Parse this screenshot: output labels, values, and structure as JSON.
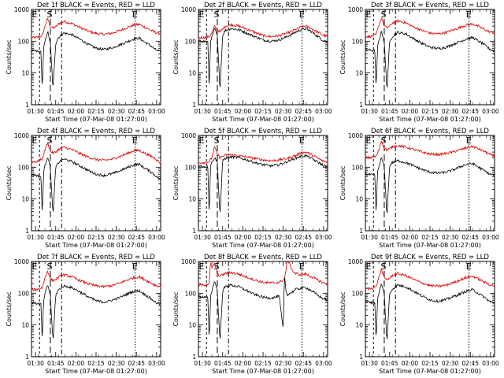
{
  "chart_data": [
    {
      "type": "line",
      "title": "Det 1f BLACK = Events, RED = LLD",
      "xlabel": "Start Time (07-Mar-08 01:27:00)",
      "ylabel": "Counts/sec",
      "yscale": "log",
      "ylim": [
        1,
        1000
      ],
      "yticks": [
        "1",
        "10",
        "100",
        "1000"
      ],
      "xticks": [
        "01:30",
        "01:45",
        "02:00",
        "02:15",
        "02:30",
        "02:45",
        "03:00"
      ],
      "xlim": [
        0,
        96
      ],
      "markers": [
        "E",
        "S",
        "E"
      ],
      "red": {
        "x": [
          0,
          4,
          8,
          10,
          12,
          14,
          16,
          18,
          20,
          24,
          30,
          36,
          42,
          48,
          54,
          60,
          66,
          72,
          76,
          80,
          84,
          88,
          92,
          96
        ],
        "y": [
          130,
          130,
          150,
          300,
          520,
          290,
          260,
          280,
          350,
          420,
          360,
          270,
          210,
          175,
          165,
          180,
          220,
          280,
          320,
          340,
          280,
          230,
          190,
          170
        ]
      },
      "black": {
        "x": [
          0,
          4,
          7,
          8,
          9,
          10,
          12,
          14,
          16,
          18,
          20,
          24,
          30,
          36,
          42,
          48,
          54,
          60,
          66,
          72,
          76,
          80,
          84,
          88,
          92,
          96
        ],
        "y": [
          50,
          48,
          45,
          3,
          60,
          95,
          200,
          90,
          3,
          90,
          130,
          180,
          160,
          115,
          80,
          60,
          55,
          62,
          78,
          100,
          118,
          125,
          95,
          75,
          55,
          45
        ]
      }
    },
    {
      "type": "line",
      "title": "Det 2f BLACK = Events, RED = LLD",
      "xlabel": "Start Time (07-Mar-08 01:27:00)",
      "ylabel": "Counts/sec",
      "yscale": "log",
      "ylim": [
        1,
        1000
      ],
      "yticks": [
        "1",
        "10",
        "100",
        "1000"
      ],
      "xticks": [
        "01:30",
        "01:45",
        "02:00",
        "02:15",
        "02:30",
        "02:45",
        "03:00"
      ],
      "xlim": [
        0,
        96
      ],
      "markers": [
        "E",
        "S",
        "E"
      ],
      "red": {
        "x": [
          0,
          4,
          8,
          10,
          12,
          14,
          16,
          18,
          20,
          24,
          30,
          36,
          42,
          48,
          54,
          60,
          66,
          72,
          76,
          80,
          84,
          88,
          92,
          96
        ],
        "y": [
          130,
          130,
          140,
          180,
          300,
          230,
          200,
          240,
          300,
          330,
          300,
          240,
          190,
          150,
          140,
          150,
          180,
          230,
          280,
          300,
          250,
          200,
          160,
          140
        ]
      },
      "black": {
        "x": [
          0,
          4,
          7,
          8,
          9,
          10,
          12,
          14,
          16,
          18,
          20,
          24,
          30,
          36,
          42,
          48,
          54,
          60,
          66,
          72,
          76,
          80,
          84,
          88,
          92,
          96
        ],
        "y": [
          100,
          100,
          95,
          3,
          110,
          130,
          250,
          150,
          3,
          160,
          220,
          250,
          230,
          180,
          140,
          110,
          100,
          110,
          140,
          190,
          230,
          250,
          200,
          150,
          110,
          95
        ]
      }
    },
    {
      "type": "line",
      "title": "Det 3f BLACK = Events, RED = LLD",
      "xlabel": "Start Time (07-Mar-08 01:27:00)",
      "ylabel": "Counts/sec",
      "yscale": "log",
      "ylim": [
        1,
        1000
      ],
      "yticks": [
        "1",
        "10",
        "100",
        "1000"
      ],
      "xticks": [
        "01:30",
        "01:45",
        "02:00",
        "02:15",
        "02:30",
        "02:45",
        "03:00"
      ],
      "xlim": [
        0,
        96
      ],
      "markers": [
        "E",
        "S",
        "E"
      ],
      "red": {
        "x": [
          0,
          4,
          8,
          10,
          12,
          14,
          16,
          18,
          20,
          24,
          30,
          36,
          42,
          48,
          54,
          60,
          66,
          72,
          76,
          80,
          84,
          88,
          92,
          96
        ],
        "y": [
          140,
          140,
          160,
          320,
          560,
          300,
          270,
          300,
          370,
          440,
          380,
          280,
          220,
          180,
          170,
          190,
          230,
          290,
          330,
          350,
          290,
          240,
          200,
          180
        ]
      },
      "black": {
        "x": [
          0,
          4,
          7,
          8,
          9,
          10,
          12,
          14,
          16,
          18,
          20,
          24,
          30,
          36,
          42,
          48,
          54,
          60,
          66,
          72,
          76,
          80,
          84,
          88,
          92,
          96
        ],
        "y": [
          55,
          52,
          50,
          3,
          65,
          100,
          210,
          95,
          3,
          95,
          140,
          190,
          170,
          120,
          85,
          65,
          58,
          65,
          82,
          105,
          122,
          130,
          100,
          80,
          58,
          48
        ]
      }
    },
    {
      "type": "line",
      "title": "Det 4f BLACK = Events, RED = LLD",
      "xlabel": "Start Time (07-Mar-08 01:27:00)",
      "ylabel": "Counts/sec",
      "yscale": "log",
      "ylim": [
        1,
        1000
      ],
      "yticks": [
        "1",
        "10",
        "100",
        "1000"
      ],
      "xticks": [
        "01:30",
        "01:45",
        "02:00",
        "02:15",
        "02:30",
        "02:45",
        "03:00"
      ],
      "xlim": [
        0,
        96
      ],
      "markers": [
        "E",
        "S",
        "E"
      ],
      "red": {
        "x": [
          0,
          4,
          8,
          10,
          12,
          14,
          16,
          18,
          20,
          24,
          30,
          36,
          42,
          48,
          54,
          60,
          66,
          72,
          76,
          80,
          84,
          88,
          92,
          96
        ],
        "y": [
          150,
          150,
          180,
          350,
          600,
          320,
          280,
          300,
          360,
          420,
          360,
          270,
          210,
          175,
          165,
          180,
          220,
          280,
          330,
          340,
          280,
          230,
          190,
          130
        ]
      },
      "black": {
        "x": [
          0,
          4,
          7,
          8,
          9,
          10,
          12,
          14,
          16,
          18,
          20,
          24,
          30,
          36,
          42,
          48,
          54,
          60,
          66,
          72,
          76,
          80,
          84,
          88,
          92,
          96
        ],
        "y": [
          60,
          55,
          50,
          3,
          70,
          110,
          220,
          100,
          3,
          100,
          140,
          180,
          150,
          110,
          80,
          60,
          55,
          62,
          78,
          100,
          118,
          125,
          95,
          75,
          55,
          40
        ]
      }
    },
    {
      "type": "line",
      "title": "Det 5f BLACK = Events, RED = LLD",
      "xlabel": "Start Time (07-Mar-08 01:27:00)",
      "ylabel": "Counts/sec",
      "yscale": "log",
      "ylim": [
        1,
        1000
      ],
      "yticks": [
        "1",
        "10",
        "100",
        "1000"
      ],
      "xticks": [
        "01:30",
        "01:45",
        "02:00",
        "02:15",
        "02:30",
        "02:45",
        "03:00"
      ],
      "xlim": [
        0,
        96
      ],
      "markers": [
        "E",
        "S",
        "E"
      ],
      "red": {
        "x": [
          0,
          4,
          8,
          10,
          12,
          14,
          16,
          18,
          20,
          24,
          30,
          36,
          42,
          48,
          54,
          60,
          66,
          72,
          76,
          80,
          84,
          88,
          92,
          96
        ],
        "y": [
          140,
          140,
          150,
          200,
          450,
          250,
          200,
          220,
          240,
          250,
          230,
          210,
          190,
          170,
          160,
          170,
          190,
          230,
          280,
          300,
          250,
          200,
          160,
          140
        ]
      },
      "black": {
        "x": [
          0,
          4,
          7,
          8,
          9,
          10,
          12,
          14,
          16,
          18,
          20,
          24,
          30,
          36,
          42,
          48,
          54,
          60,
          66,
          72,
          76,
          80,
          84,
          88,
          92,
          96
        ],
        "y": [
          110,
          105,
          100,
          3,
          120,
          140,
          200,
          150,
          3,
          160,
          190,
          210,
          200,
          170,
          140,
          120,
          110,
          120,
          150,
          190,
          220,
          230,
          190,
          150,
          120,
          100
        ]
      }
    },
    {
      "type": "line",
      "title": "Det 6f BLACK = Events, RED = LLD",
      "xlabel": "Start Time (07-Mar-08 01:27:00)",
      "ylabel": "Counts/sec",
      "yscale": "log",
      "ylim": [
        1,
        1000
      ],
      "yticks": [
        "1",
        "10",
        "100",
        "1000"
      ],
      "xticks": [
        "01:30",
        "01:45",
        "02:00",
        "02:15",
        "02:30",
        "02:45",
        "03:00"
      ],
      "xlim": [
        0,
        96
      ],
      "markers": [
        "E",
        "S",
        "E"
      ],
      "red": {
        "x": [
          0,
          4,
          8,
          10,
          12,
          14,
          16,
          18,
          20,
          24,
          30,
          36,
          42,
          48,
          54,
          60,
          66,
          72,
          76,
          80,
          84,
          88,
          92,
          96
        ],
        "y": [
          200,
          200,
          220,
          350,
          700,
          400,
          350,
          380,
          440,
          480,
          430,
          360,
          300,
          260,
          250,
          270,
          310,
          370,
          420,
          450,
          380,
          320,
          260,
          220
        ]
      },
      "black": {
        "x": [
          0,
          4,
          7,
          8,
          9,
          10,
          12,
          14,
          16,
          18,
          20,
          24,
          30,
          36,
          42,
          48,
          54,
          60,
          66,
          72,
          76,
          80,
          84,
          88,
          92,
          96
        ],
        "y": [
          60,
          58,
          55,
          3,
          70,
          100,
          200,
          100,
          3,
          110,
          140,
          160,
          140,
          110,
          85,
          70,
          65,
          70,
          85,
          110,
          125,
          130,
          100,
          80,
          62,
          55
        ]
      }
    },
    {
      "type": "line",
      "title": "Det 7f BLACK = Events, RED = LLD",
      "xlabel": "Start Time (07-Mar-08 01:27:00)",
      "ylabel": "Counts/sec",
      "yscale": "log",
      "ylim": [
        1,
        1000
      ],
      "yticks": [
        "1",
        "10",
        "100",
        "1000"
      ],
      "xticks": [
        "01:30",
        "01:45",
        "02:00",
        "02:15",
        "02:30",
        "02:45",
        "03:00"
      ],
      "xlim": [
        0,
        96
      ],
      "markers": [
        "E",
        "S",
        "E"
      ],
      "red": {
        "x": [
          0,
          4,
          8,
          10,
          12,
          14,
          16,
          18,
          20,
          24,
          30,
          36,
          42,
          48,
          54,
          60,
          66,
          72,
          76,
          80,
          84,
          88,
          92,
          96
        ],
        "y": [
          130,
          130,
          150,
          300,
          520,
          280,
          250,
          270,
          320,
          380,
          330,
          250,
          200,
          170,
          160,
          175,
          210,
          270,
          310,
          330,
          270,
          220,
          180,
          160
        ]
      },
      "black": {
        "x": [
          0,
          4,
          7,
          8,
          9,
          10,
          12,
          14,
          16,
          18,
          20,
          24,
          30,
          36,
          42,
          48,
          54,
          60,
          66,
          72,
          76,
          80,
          84,
          88,
          92,
          96
        ],
        "y": [
          50,
          48,
          45,
          3,
          60,
          90,
          190,
          85,
          3,
          90,
          125,
          170,
          150,
          110,
          78,
          58,
          52,
          60,
          75,
          98,
          115,
          120,
          92,
          72,
          52,
          45
        ]
      }
    },
    {
      "type": "line",
      "title": "Det 8f BLACK = Events, RED = LLD",
      "xlabel": "Start Time (07-Mar-08 01:27:00)",
      "ylabel": "Counts/sec",
      "yscale": "log",
      "ylim": [
        1,
        1000
      ],
      "yticks": [
        "1",
        "10",
        "100",
        "1000"
      ],
      "xticks": [
        "01:30",
        "01:45",
        "02:00",
        "02:15",
        "02:30",
        "02:45",
        "03:00"
      ],
      "xlim": [
        0,
        96
      ],
      "markers": [
        "E",
        "S",
        "E"
      ],
      "red": {
        "x": [
          0,
          4,
          8,
          9,
          10,
          12,
          14,
          16,
          18,
          20,
          24,
          30,
          36,
          42,
          48,
          54,
          60,
          64,
          66,
          67,
          70,
          72,
          76,
          80,
          84,
          88,
          92,
          96
        ],
        "y": [
          180,
          180,
          200,
          1000,
          600,
          900,
          400,
          350,
          380,
          420,
          450,
          400,
          320,
          260,
          220,
          210,
          220,
          280,
          1000,
          1000,
          500,
          420,
          380,
          400,
          330,
          270,
          220,
          190
        ]
      },
      "black": {
        "x": [
          0,
          4,
          7,
          8,
          9,
          10,
          12,
          14,
          16,
          18,
          20,
          24,
          30,
          36,
          42,
          48,
          54,
          60,
          63,
          64,
          65,
          66,
          70,
          72,
          76,
          80,
          84,
          88,
          92,
          96
        ],
        "y": [
          80,
          75,
          70,
          3,
          80,
          120,
          250,
          120,
          3,
          120,
          160,
          180,
          160,
          120,
          90,
          75,
          70,
          80,
          7,
          400,
          120,
          90,
          110,
          130,
          145,
          150,
          120,
          90,
          70,
          60
        ]
      }
    },
    {
      "type": "line",
      "title": "Det 9f BLACK = Events, RED = LLD",
      "xlabel": "Start Time (07-Mar-08 01:27:00)",
      "ylabel": "Counts/sec",
      "yscale": "log",
      "ylim": [
        1,
        1000
      ],
      "yticks": [
        "1",
        "10",
        "100",
        "1000"
      ],
      "xticks": [
        "01:30",
        "01:45",
        "02:00",
        "02:15",
        "02:30",
        "02:45",
        "03:00"
      ],
      "xlim": [
        0,
        96
      ],
      "markers": [
        "E",
        "S",
        "E"
      ],
      "red": {
        "x": [
          0,
          4,
          8,
          10,
          12,
          14,
          16,
          18,
          20,
          24,
          30,
          36,
          42,
          48,
          54,
          60,
          66,
          72,
          76,
          80,
          84,
          88,
          92,
          96
        ],
        "y": [
          140,
          140,
          160,
          320,
          560,
          300,
          270,
          300,
          360,
          420,
          360,
          270,
          210,
          175,
          165,
          180,
          220,
          280,
          320,
          340,
          280,
          230,
          190,
          170
        ]
      },
      "black": {
        "x": [
          0,
          4,
          7,
          8,
          9,
          10,
          12,
          14,
          16,
          18,
          20,
          24,
          30,
          36,
          42,
          48,
          54,
          60,
          66,
          72,
          76,
          80,
          84,
          88,
          92,
          96
        ],
        "y": [
          55,
          52,
          50,
          3,
          65,
          100,
          200,
          95,
          3,
          95,
          135,
          180,
          160,
          115,
          82,
          62,
          56,
          63,
          80,
          102,
          120,
          128,
          98,
          78,
          56,
          48
        ]
      }
    }
  ],
  "colors": {
    "events": "#000000",
    "lld": "#e00000"
  }
}
